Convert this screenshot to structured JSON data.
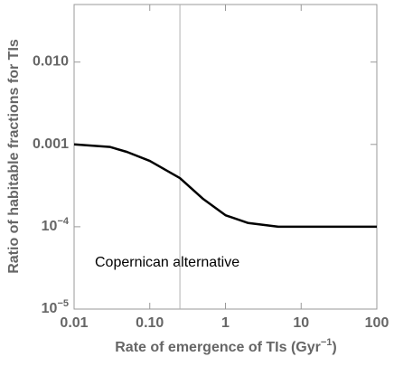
{
  "chart_data": {
    "type": "line",
    "x_label": "Rate of emergence of TIs (Gyr",
    "x_label_exponent": "−1",
    "x_label_end": ")",
    "y_label": "Ratio of habitable fractions for TIs",
    "annotation": "Copernican alternative",
    "x": [
      0.01,
      0.03,
      0.05,
      0.1,
      0.25,
      0.5,
      1,
      2,
      5,
      10,
      100
    ],
    "series": [
      {
        "color": "#000000",
        "values": [
          0.001,
          0.00093,
          0.00081,
          0.00063,
          0.00039,
          0.00022,
          0.000138,
          0.000111,
          0.0001,
          0.0001,
          0.0001
        ]
      }
    ],
    "vline": 0.25,
    "vline_color": "#b0b0b0",
    "xlog": true,
    "ylog": true,
    "xlim": [
      0.01,
      100
    ],
    "ylim": [
      1e-05,
      0.05
    ],
    "xticks": [
      0.01,
      {
        "value": 0.1,
        "label": "0.10"
      },
      1,
      10,
      100
    ],
    "yticks": [
      {
        "value": 1e-05,
        "label": "10",
        "exponent": "−5"
      },
      {
        "value": 0.0001,
        "label": "10",
        "exponent": "−4"
      },
      0.001,
      {
        "value": 0.01,
        "label": "0.010"
      }
    ]
  }
}
